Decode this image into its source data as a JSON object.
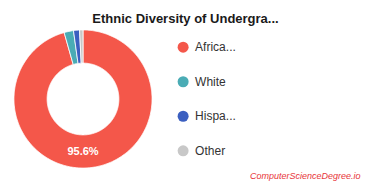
{
  "chart_data": {
    "type": "pie",
    "title": "Ethnic Diversity of Undergra...",
    "categories": [
      "Africa...",
      "White",
      "Hispa...",
      "Other"
    ],
    "values": [
      95.6,
      2.2,
      1.4,
      0.8
    ],
    "colors": [
      "#f4574a",
      "#4aacb5",
      "#3b5fc0",
      "#c8c8c8"
    ],
    "legend": "right",
    "annotations": [
      {
        "text": "95.6%",
        "color": "#ffffff"
      },
      {
        "text": "ComputerScienceDegree.io",
        "color": "#e8363a"
      }
    ]
  }
}
